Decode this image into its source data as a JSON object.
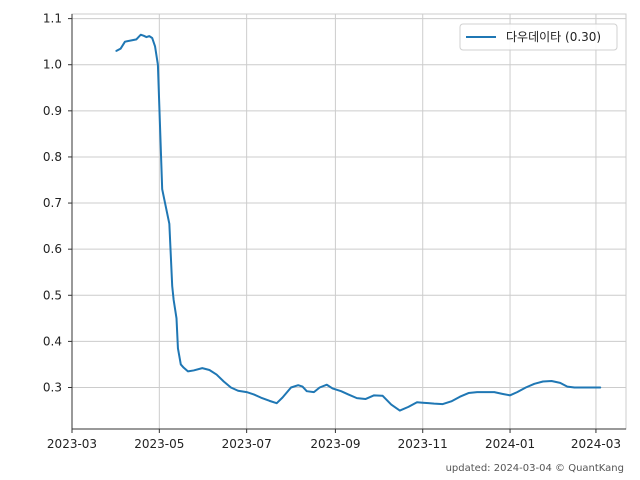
{
  "chart_data": {
    "type": "line",
    "title": "",
    "xlabel": "",
    "ylabel": "",
    "xlim": [
      "2023-03-01",
      "2024-03-22"
    ],
    "ylim": [
      0.21,
      1.11
    ],
    "grid": true,
    "legend_position": "top-right",
    "x_ticks": [
      "2023-03",
      "2023-05",
      "2023-07",
      "2023-09",
      "2023-11",
      "2024-01",
      "2024-03"
    ],
    "y_ticks": [
      0.3,
      0.4,
      0.5,
      0.6,
      0.7,
      0.8,
      0.9,
      1.0,
      1.1
    ],
    "y_tick_labels": [
      "0.3",
      "0.4",
      "0.5",
      "0.6",
      "0.7",
      "0.8",
      "0.9",
      "1.0",
      "1.1"
    ],
    "series": [
      {
        "name": "다우데이타 (0.30)",
        "color": "#1f77b4",
        "x": [
          "2023-04-01",
          "2023-04-04",
          "2023-04-07",
          "2023-04-12",
          "2023-04-15",
          "2023-04-18",
          "2023-04-20",
          "2023-04-22",
          "2023-04-24",
          "2023-04-26",
          "2023-04-28",
          "2023-04-30",
          "2023-05-03",
          "2023-05-05",
          "2023-05-08",
          "2023-05-10",
          "2023-05-11",
          "2023-05-13",
          "2023-05-14",
          "2023-05-16",
          "2023-05-18",
          "2023-05-21",
          "2023-05-25",
          "2023-05-31",
          "2023-06-05",
          "2023-06-10",
          "2023-06-15",
          "2023-06-20",
          "2023-06-25",
          "2023-07-01",
          "2023-07-06",
          "2023-07-11",
          "2023-07-17",
          "2023-07-22",
          "2023-07-26",
          "2023-08-01",
          "2023-08-06",
          "2023-08-09",
          "2023-08-12",
          "2023-08-17",
          "2023-08-21",
          "2023-08-26",
          "2023-08-30",
          "2023-09-05",
          "2023-09-10",
          "2023-09-16",
          "2023-09-22",
          "2023-09-28",
          "2023-10-04",
          "2023-10-10",
          "2023-10-16",
          "2023-10-22",
          "2023-10-28",
          "2023-11-01",
          "2023-11-05",
          "2023-11-09",
          "2023-11-15",
          "2023-11-21",
          "2023-11-27",
          "2023-12-03",
          "2023-12-09",
          "2023-12-15",
          "2023-12-21",
          "2023-12-27",
          "2024-01-01",
          "2024-01-06",
          "2024-01-12",
          "2024-01-18",
          "2024-01-24",
          "2024-01-30",
          "2024-02-05",
          "2024-02-10",
          "2024-02-15",
          "2024-02-20",
          "2024-02-23",
          "2024-02-27",
          "2024-03-01",
          "2024-03-04"
        ],
        "values": [
          1.03,
          1.035,
          1.05,
          1.053,
          1.055,
          1.065,
          1.063,
          1.06,
          1.062,
          1.058,
          1.04,
          1.0,
          0.73,
          0.7,
          0.655,
          0.52,
          0.49,
          0.45,
          0.385,
          0.35,
          0.343,
          0.335,
          0.337,
          0.342,
          0.338,
          0.328,
          0.313,
          0.3,
          0.293,
          0.29,
          0.285,
          0.278,
          0.271,
          0.266,
          0.278,
          0.3,
          0.305,
          0.302,
          0.292,
          0.29,
          0.3,
          0.306,
          0.298,
          0.292,
          0.285,
          0.277,
          0.275,
          0.283,
          0.282,
          0.263,
          0.25,
          0.258,
          0.268,
          0.267,
          0.266,
          0.265,
          0.264,
          0.27,
          0.28,
          0.288,
          0.29,
          0.29,
          0.29,
          0.286,
          0.283,
          0.29,
          0.3,
          0.308,
          0.313,
          0.314,
          0.31,
          0.302,
          0.3,
          0.3,
          0.3,
          0.3,
          0.3,
          0.3
        ]
      }
    ]
  },
  "footer": {
    "text": "updated: 2024-03-04 © QuantKang"
  }
}
